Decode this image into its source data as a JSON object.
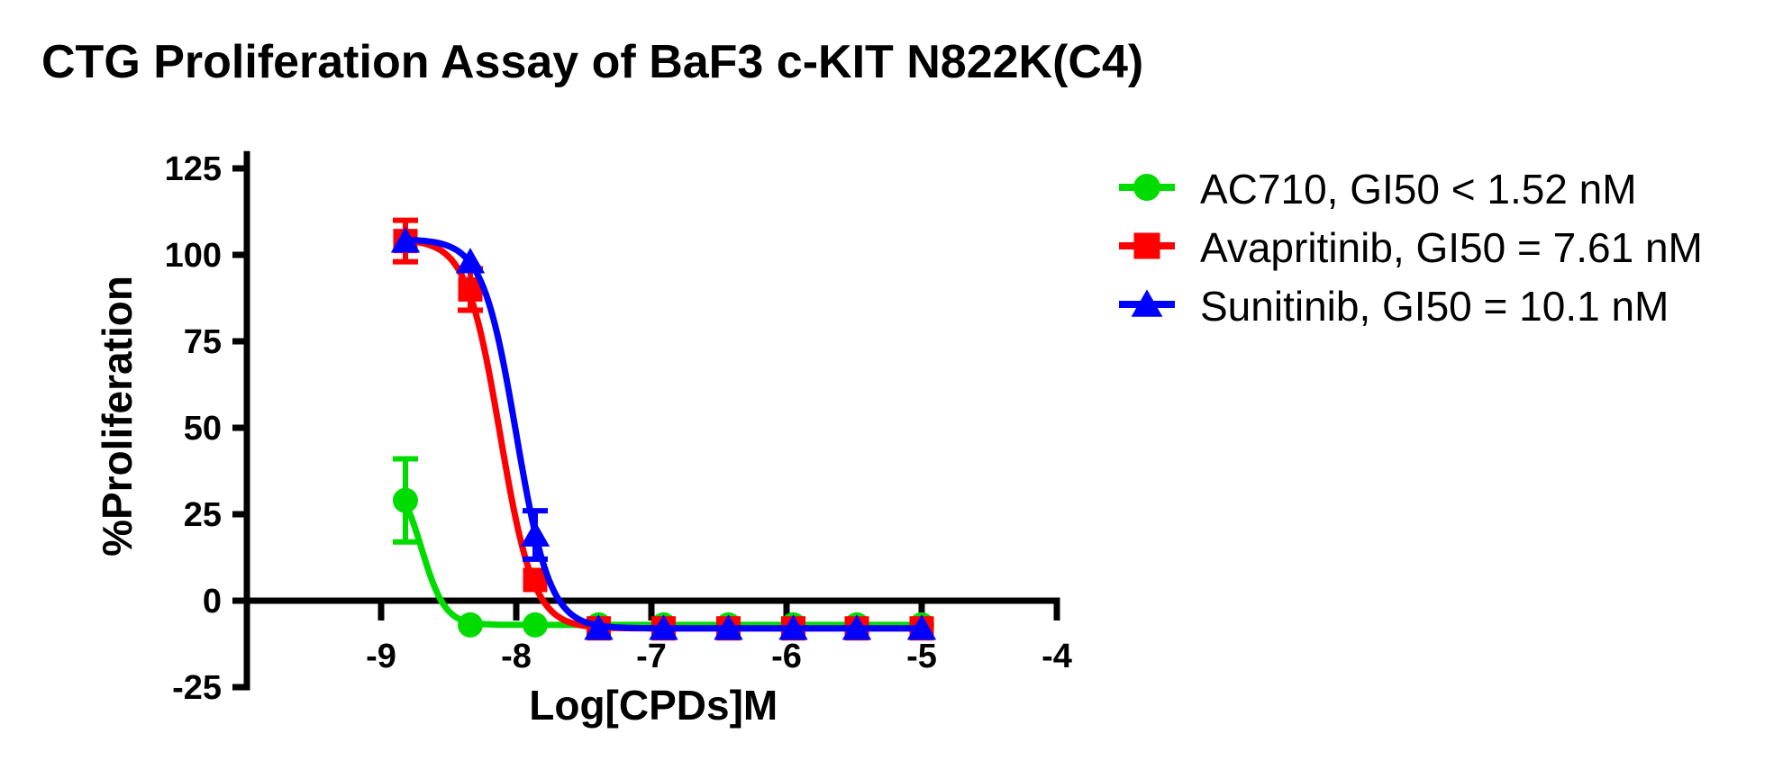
{
  "figure": {
    "background": "#FFFFFF",
    "axis_color": "#000000",
    "text_color": "#000000"
  },
  "chart_data": {
    "type": "line",
    "title": "CTG Proliferation Assay of BaF3 c-KIT N822K(C4)",
    "xlabel": "Log[CPDs]M",
    "ylabel": "%Proliferation",
    "xlim": [
      -10,
      -4
    ],
    "ylim": [
      -25,
      130
    ],
    "x_ticks": [
      -9,
      -8,
      -7,
      -6,
      -5,
      -4
    ],
    "y_ticks": [
      125,
      100,
      75,
      50,
      25,
      0,
      -25
    ],
    "grid": false,
    "legend_position": "outside-right",
    "x_log_concentrations": [
      -8.82,
      -8.34,
      -7.86,
      -7.39,
      -6.91,
      -6.43,
      -5.95,
      -5.48,
      -5.0
    ],
    "series": [
      {
        "name": "AC710",
        "legend_label": "AC710, GI50 < 1.52 nM",
        "gi50_text": "GI50 < 1.52 nM",
        "color": "#00DC00",
        "marker": "circle",
        "y": [
          29,
          -7,
          -7,
          -7,
          -7,
          -7,
          -7,
          -7,
          -7
        ],
        "y_err": [
          12,
          0,
          0,
          0,
          0,
          0,
          0,
          0,
          0
        ],
        "fit": {
          "top": 37,
          "bottom": -7,
          "log_gi50": -8.7,
          "hill": 5.0
        }
      },
      {
        "name": "Avapritinib",
        "legend_label": "Avapritinib, GI50 = 7.61 nM",
        "gi50_text": "GI50 = 7.61 nM",
        "color": "#FF0000",
        "marker": "square",
        "y": [
          104,
          90,
          6,
          -8,
          -8,
          -8,
          -8,
          -8,
          -8
        ],
        "y_err": [
          6,
          6,
          0,
          0,
          0,
          0,
          0,
          0,
          0
        ],
        "fit": {
          "top": 104.5,
          "bottom": -8,
          "log_gi50": -8.12,
          "hill": 3.5
        }
      },
      {
        "name": "Sunitinib",
        "legend_label": "Sunitinib, GI50 = 10.1 nM",
        "gi50_text": "GI50 = 10.1 nM",
        "color": "#0000FF",
        "marker": "triangle",
        "y": [
          104,
          98,
          19,
          -8,
          -8,
          -8,
          -8,
          -8,
          -8
        ],
        "y_err": [
          0,
          0,
          7,
          0,
          0,
          0,
          0,
          0,
          0
        ],
        "fit": {
          "top": 104.5,
          "bottom": -8,
          "log_gi50": -8.0,
          "hill": 3.5
        }
      }
    ]
  }
}
